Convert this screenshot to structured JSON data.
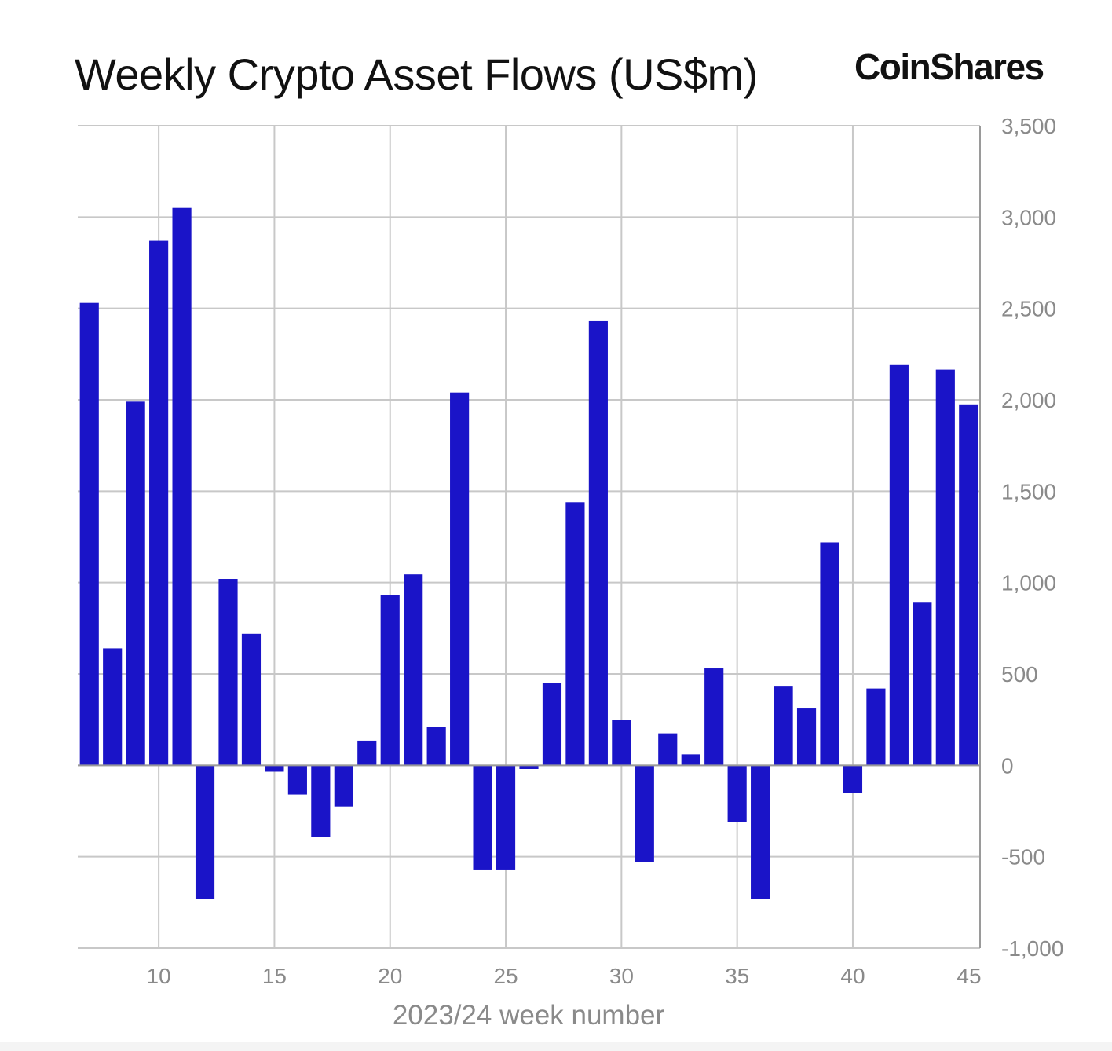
{
  "title": "Weekly Crypto Asset Flows (US$m)",
  "brand": "CoinShares",
  "colors": {
    "bar": "#1a14c8",
    "grid": "#c8c8c8",
    "axis": "#9a9a9a",
    "label": "#8a8a8a",
    "title": "#111111"
  },
  "chart_data": {
    "type": "bar",
    "title": "Weekly Crypto Asset Flows (US$m)",
    "xlabel": "2023/24 week number",
    "ylabel": "",
    "y_axis_position": "right",
    "xlim": [
      6.5,
      45.5
    ],
    "ylim": [
      -1000,
      3500
    ],
    "x_ticks": [
      10,
      15,
      20,
      25,
      30,
      35,
      40,
      45
    ],
    "y_ticks": [
      -1000,
      -500,
      0,
      500,
      1000,
      1500,
      2000,
      2500,
      3000,
      3500
    ],
    "y_tick_labels": [
      "-1,000",
      "-500",
      "0",
      "500",
      "1,000",
      "1,500",
      "2,000",
      "2,500",
      "3,000",
      "3,500"
    ],
    "grid": true,
    "x": [
      7,
      8,
      9,
      10,
      11,
      12,
      13,
      14,
      15,
      16,
      17,
      18,
      19,
      20,
      21,
      22,
      23,
      24,
      25,
      26,
      27,
      28,
      29,
      30,
      31,
      32,
      33,
      34,
      35,
      36,
      37,
      38,
      39,
      40,
      41,
      42,
      43,
      44,
      45
    ],
    "values": [
      2530,
      640,
      1990,
      2870,
      3050,
      -730,
      1020,
      720,
      -35,
      -160,
      -390,
      -225,
      135,
      930,
      1045,
      210,
      2040,
      -570,
      -570,
      -20,
      450,
      1440,
      2430,
      250,
      -530,
      175,
      60,
      530,
      -310,
      -730,
      435,
      315,
      1220,
      -150,
      420,
      2190,
      890,
      2165,
      1975
    ]
  }
}
